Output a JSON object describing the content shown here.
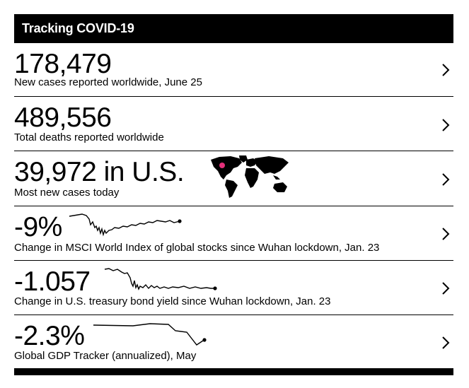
{
  "header": {
    "title": "Tracking COVID-19"
  },
  "cards": [
    {
      "value": "178,479",
      "caption": "New cases reported worldwide, June 25",
      "chevron_icon": "chevron-right-icon"
    },
    {
      "value": "489,556",
      "caption": "Total deaths reported worldwide",
      "chevron_icon": "chevron-right-icon"
    },
    {
      "value": "39,972 in U.S.",
      "caption": "Most new cases today",
      "chevron_icon": "chevron-right-icon",
      "map_icon": "world-map-icon",
      "marker_color": "#e3307a"
    },
    {
      "value": "-9%",
      "caption": "Change in MSCI World Index of global stocks since Wuhan lockdown, Jan. 23",
      "chevron_icon": "chevron-right-icon"
    },
    {
      "value": "-1.057",
      "caption": "Change in U.S. treasury bond yield since Wuhan lockdown, Jan. 23",
      "chevron_icon": "chevron-right-icon"
    },
    {
      "value": "-2.3%",
      "caption": "Global GDP Tracker (annualized), May",
      "chevron_icon": "chevron-right-icon"
    }
  ]
}
